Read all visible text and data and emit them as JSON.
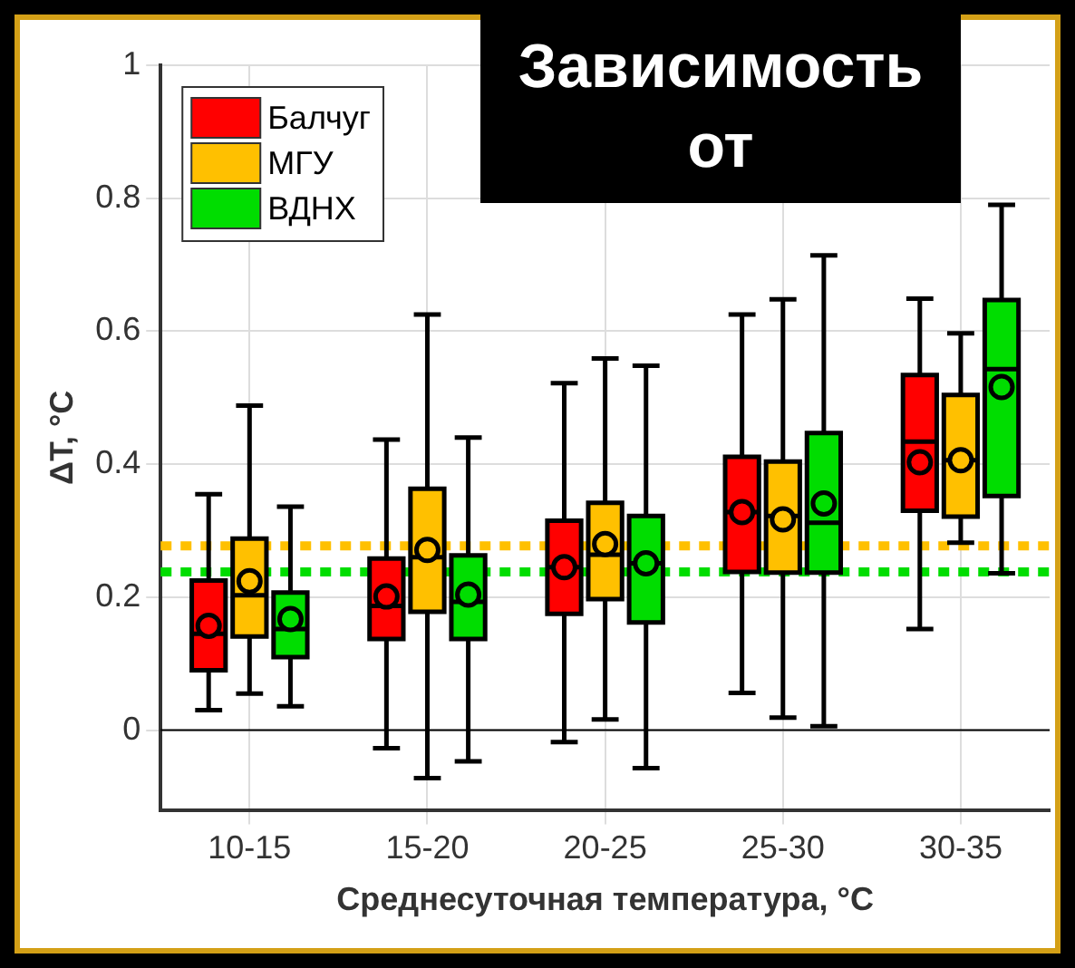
{
  "chart_data": {
    "type": "box",
    "title": "Зависимость от",
    "xlabel": "Среднесуточная температура, °C",
    "ylabel": "ΔT, °C",
    "categories": [
      "10-15",
      "15-20",
      "20-25",
      "25-30",
      "30-35"
    ],
    "series": [
      {
        "name": "Балчуг",
        "color": "#ff0000",
        "boxes": [
          {
            "low": 0.03,
            "q1": 0.09,
            "median": 0.145,
            "q3": 0.225,
            "high": 0.355,
            "mean": 0.157
          },
          {
            "low": -0.027,
            "q1": 0.137,
            "median": 0.187,
            "q3": 0.258,
            "high": 0.437,
            "mean": 0.201
          },
          {
            "low": -0.018,
            "q1": 0.175,
            "median": 0.245,
            "q3": 0.315,
            "high": 0.522,
            "mean": 0.245
          },
          {
            "low": 0.056,
            "q1": 0.238,
            "median": 0.328,
            "q3": 0.411,
            "high": 0.625,
            "mean": 0.328
          },
          {
            "low": 0.152,
            "q1": 0.33,
            "median": 0.434,
            "q3": 0.534,
            "high": 0.649,
            "mean": 0.403
          }
        ]
      },
      {
        "name": "МГУ",
        "color": "#ffc000",
        "boxes": [
          {
            "low": 0.055,
            "q1": 0.141,
            "median": 0.203,
            "q3": 0.288,
            "high": 0.488,
            "mean": 0.224
          },
          {
            "low": -0.072,
            "q1": 0.178,
            "median": 0.26,
            "q3": 0.363,
            "high": 0.625,
            "mean": 0.271
          },
          {
            "low": 0.016,
            "q1": 0.197,
            "median": 0.264,
            "q3": 0.342,
            "high": 0.559,
            "mean": 0.28
          },
          {
            "low": 0.019,
            "q1": 0.237,
            "median": 0.322,
            "q3": 0.404,
            "high": 0.648,
            "mean": 0.317
          },
          {
            "low": 0.282,
            "q1": 0.321,
            "median": 0.406,
            "q3": 0.504,
            "high": 0.597,
            "mean": 0.406
          }
        ]
      },
      {
        "name": "ВДНХ",
        "color": "#00dd00",
        "boxes": [
          {
            "low": 0.036,
            "q1": 0.11,
            "median": 0.152,
            "q3": 0.207,
            "high": 0.336,
            "mean": 0.167
          },
          {
            "low": -0.047,
            "q1": 0.137,
            "median": 0.193,
            "q3": 0.263,
            "high": 0.44,
            "mean": 0.204
          },
          {
            "low": -0.057,
            "q1": 0.162,
            "median": 0.251,
            "q3": 0.322,
            "high": 0.548,
            "mean": 0.251
          },
          {
            "low": 0.006,
            "q1": 0.237,
            "median": 0.312,
            "q3": 0.447,
            "high": 0.714,
            "mean": 0.341
          },
          {
            "low": 0.236,
            "q1": 0.352,
            "median": 0.543,
            "q3": 0.647,
            "high": 0.79,
            "mean": 0.516
          }
        ]
      }
    ],
    "ylim": [
      -0.12,
      1
    ],
    "yticks": [
      0,
      0.2,
      0.4,
      0.6,
      0.8,
      1
    ],
    "ref_lines": [
      {
        "axis": "y",
        "value": 0,
        "color": "#000000",
        "line_style": "solid"
      },
      {
        "axis": "y",
        "value": 0.277,
        "color": "#ffc000",
        "line_style": "dotted"
      },
      {
        "axis": "y",
        "value": 0.238,
        "color": "#00dd00",
        "line_style": "dotted"
      }
    ],
    "grid": true,
    "legend": "top left"
  }
}
